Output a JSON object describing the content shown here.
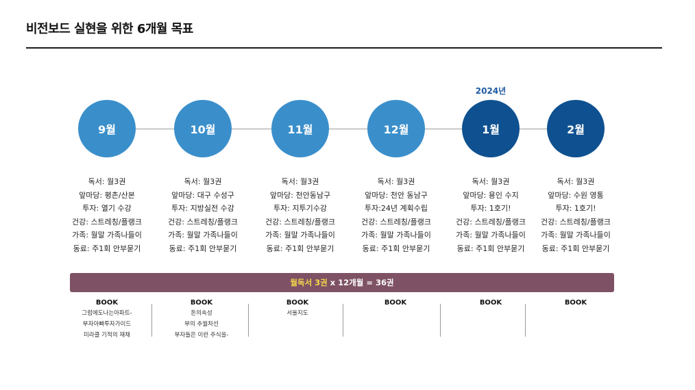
{
  "title": "비전보드 실현을 위한 6개월 목표",
  "year_label": "2024년",
  "colors": {
    "circle_light": "#3a8fcb",
    "circle_dark": "#0f5190",
    "banner": "#7e5264",
    "banner_highlight": "#f5d84a"
  },
  "months": [
    {
      "label": "9월",
      "goals": [
        "독서: 월3권",
        "앞마당: 평촌/산본",
        "투자: 열기 수강",
        "건강: 스트레칭/플랭크",
        "가족: 월말 가족나들이",
        "동료: 주1회 안부묻기"
      ]
    },
    {
      "label": "10월",
      "goals": [
        "독서: 월3권",
        "앞마당: 대구 수성구",
        "투자: 지방실전 수강",
        "건강: 스트레칭/플랭크",
        "가족: 월말 가족나들이",
        "동료: 주1회 안부묻기"
      ]
    },
    {
      "label": "11월",
      "goals": [
        "독서: 월3권",
        "앞마당: 천안동남구",
        "투자: 지투기수강",
        "건강: 스트레칭/플랭크",
        "가족: 월말 가족나들이",
        "동료: 주1회 안부묻기"
      ]
    },
    {
      "label": "12월",
      "goals": [
        "독서: 월3권",
        "앞마당: 천안 동남구",
        "투자:24년 계획수립",
        "건강: 스트레칭/플랭크",
        "가족: 월말 가족나들이",
        "동료: 주1회 안부묻기"
      ]
    },
    {
      "label": "1월",
      "goals": [
        "독서: 월3권",
        "앞마당: 용인 수지",
        "투자: 1호기!",
        "건강: 스트레칭/플랭크",
        "가족: 월말 가족나들이",
        "동료: 주1회 안부묻기"
      ]
    },
    {
      "label": "2월",
      "goals": [
        "독서: 월3권",
        "앞마당: 수원 영통",
        "투자: 1호기!",
        "건강: 스트레칭/플랭크",
        "가족: 월말 가족나들이",
        "동료: 주1회 안부묻기"
      ]
    }
  ],
  "banner": {
    "highlight": "월독서 3권",
    "rest": " x 12개월 = 36권"
  },
  "books": [
    {
      "heading": "BOOK",
      "items": [
        "그럼에도나는아파트-",
        "부자아빠투자가이드",
        "미라클 기적의 재채"
      ]
    },
    {
      "heading": "BOOK",
      "items": [
        "돈의속성",
        "부의 추월차선",
        "부자들은 이런 주식을-"
      ]
    },
    {
      "heading": "BOOK",
      "items": [
        "서울지도"
      ]
    },
    {
      "heading": "BOOK",
      "items": []
    },
    {
      "heading": "BOOK",
      "items": []
    },
    {
      "heading": "BOOK",
      "items": []
    }
  ]
}
